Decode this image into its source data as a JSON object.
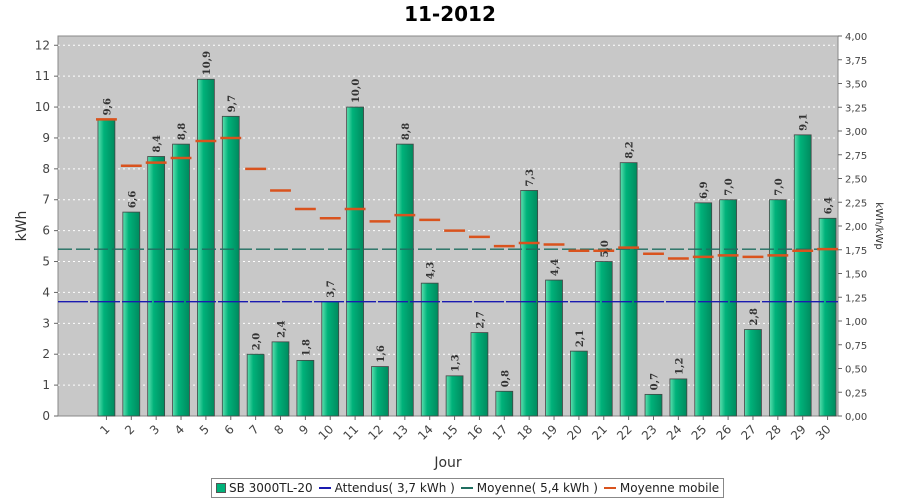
{
  "chart_data": {
    "type": "bar",
    "title": "11-2012",
    "xlabel": "Jour",
    "ylabel": "kWh",
    "ylabel_right": "kWh/kWp",
    "ylim": [
      0,
      12.3
    ],
    "ylim_right": [
      0,
      4.0
    ],
    "yticks": [
      0,
      1,
      2,
      3,
      4,
      5,
      6,
      7,
      8,
      9,
      10,
      11,
      12
    ],
    "yticks_right": [
      "0,00",
      "0,25",
      "0,50",
      "0,75",
      "1,00",
      "1,25",
      "1,50",
      "1,75",
      "2,00",
      "2,25",
      "2,50",
      "2,75",
      "3,00",
      "3,25",
      "3,50",
      "3,75",
      "4,00"
    ],
    "grid": true,
    "legend_position": "bottom",
    "categories": [
      "1",
      "2",
      "3",
      "4",
      "5",
      "6",
      "7",
      "8",
      "9",
      "10",
      "11",
      "12",
      "13",
      "14",
      "15",
      "16",
      "17",
      "18",
      "19",
      "20",
      "21",
      "22",
      "23",
      "24",
      "25",
      "26",
      "27",
      "28",
      "29",
      "30"
    ],
    "series": [
      {
        "name": "SB 3000TL-20",
        "kind": "bar",
        "color": "#00b27a",
        "values": [
          9.6,
          6.6,
          8.4,
          8.8,
          10.9,
          9.7,
          2.0,
          2.4,
          1.8,
          3.7,
          10.0,
          1.6,
          8.8,
          4.3,
          1.3,
          2.7,
          0.8,
          7.3,
          4.4,
          2.1,
          5.0,
          8.2,
          0.7,
          1.2,
          6.9,
          7.0,
          2.8,
          7.0,
          9.1,
          6.4
        ],
        "labels": [
          "9,6",
          "6,6",
          "8,4",
          "8,8",
          "10,9",
          "9,7",
          "2,0",
          "2,4",
          "1,8",
          "3,7",
          "10,0",
          "1,6",
          "8,8",
          "4,3",
          "1,3",
          "2,7",
          "0,8",
          "7,3",
          "4,4",
          "2,1",
          "5,0",
          "8,2",
          "0,7",
          "1,2",
          "6,9",
          "7,0",
          "2,8",
          "7,0",
          "9,1",
          "6,4"
        ]
      },
      {
        "name": "Attendus( 3,7 kWh )",
        "kind": "hline",
        "color": "#1a1ab0",
        "value": 3.7
      },
      {
        "name": "Moyenne( 5,4 kWh )",
        "kind": "hline",
        "color": "#1f6e60",
        "value": 5.4
      },
      {
        "name": "Moyenne mobile",
        "kind": "step",
        "color": "#d9531e",
        "values": [
          9.6,
          8.1,
          8.2,
          8.35,
          8.9,
          9.0,
          8.0,
          7.3,
          6.7,
          6.4,
          6.7,
          6.3,
          6.5,
          6.35,
          6.0,
          5.8,
          5.5,
          5.6,
          5.55,
          5.35,
          5.35,
          5.45,
          5.25,
          5.1,
          5.15,
          5.2,
          5.15,
          5.2,
          5.35,
          5.4
        ]
      }
    ]
  }
}
